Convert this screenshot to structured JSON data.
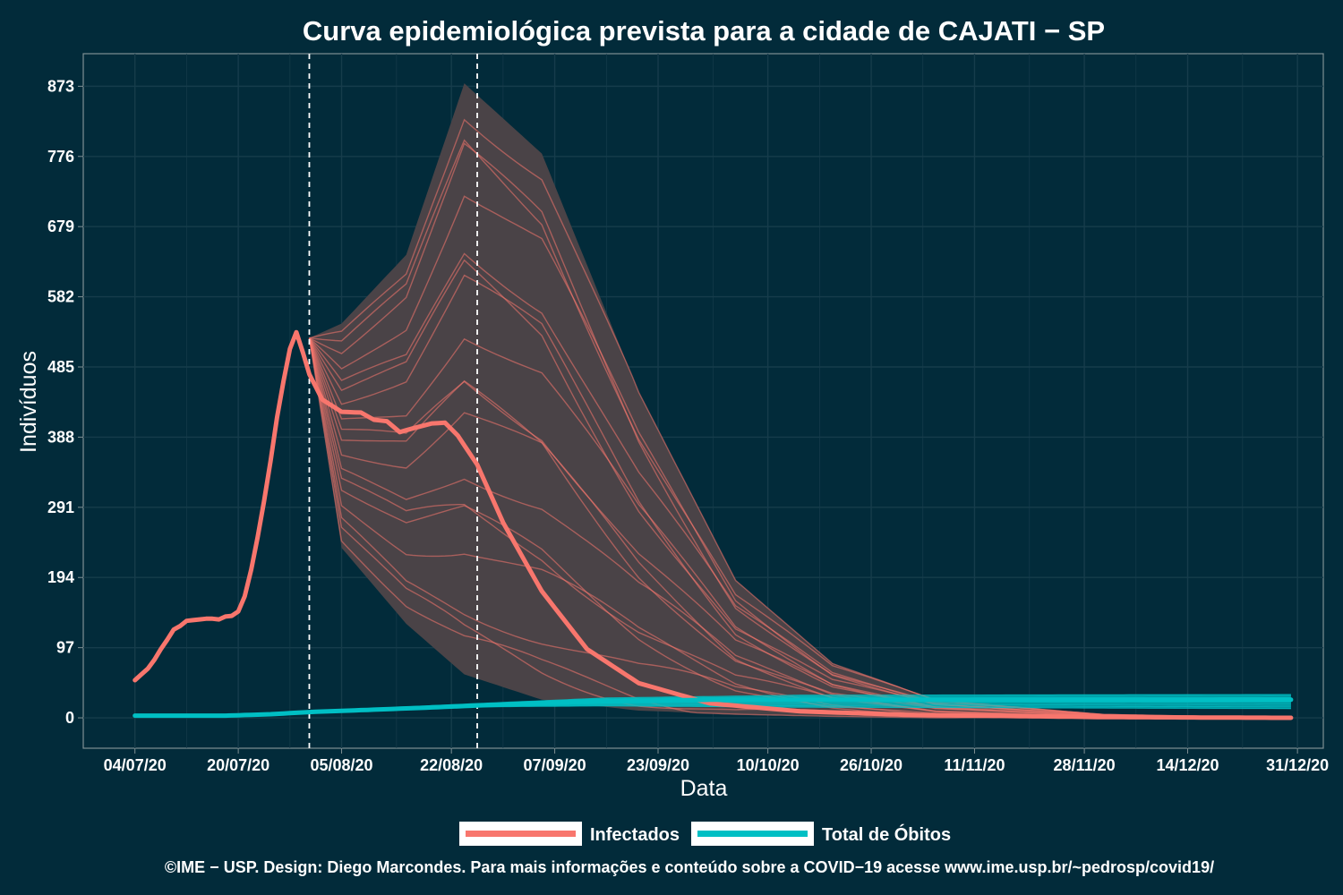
{
  "colors": {
    "background": "#022b3a",
    "infectados": "#f8766d",
    "obitos": "#00bfc4",
    "band": "#4a4347",
    "grid": "#163c4b",
    "vline": "#ffffff",
    "panel_border": "#7f8f93"
  },
  "chart_data": {
    "type": "line",
    "title": "Curva epidemiológica prevista para a cidade de CAJATI − SP",
    "xlabel": "Data",
    "ylabel": "Indivíduos",
    "x_ticks": [
      "04/07/20",
      "20/07/20",
      "05/08/20",
      "22/08/20",
      "07/09/20",
      "23/09/20",
      "10/10/20",
      "26/10/20",
      "11/11/20",
      "28/11/20",
      "14/12/20",
      "31/12/20"
    ],
    "y_ticks": [
      "0",
      "97",
      "194",
      "291",
      "388",
      "485",
      "582",
      "679",
      "776",
      "873"
    ],
    "xlim": [
      "2020-06-26",
      "2021-01-04"
    ],
    "ylim": [
      -42,
      918
    ],
    "grid": true,
    "legend_position": "bottom",
    "vlines": [
      "2020-07-31",
      "2020-08-26"
    ],
    "series": [
      {
        "name": "Infectados",
        "observed": [
          [
            "2020-07-04",
            52
          ],
          [
            "2020-07-05",
            60
          ],
          [
            "2020-07-06",
            68
          ],
          [
            "2020-07-07",
            80
          ],
          [
            "2020-07-08",
            95
          ],
          [
            "2020-07-09",
            108
          ],
          [
            "2020-07-10",
            122
          ],
          [
            "2020-07-11",
            127
          ],
          [
            "2020-07-12",
            134
          ],
          [
            "2020-07-13",
            135
          ],
          [
            "2020-07-14",
            136
          ],
          [
            "2020-07-15",
            137
          ],
          [
            "2020-07-16",
            137
          ],
          [
            "2020-07-17",
            136
          ],
          [
            "2020-07-18",
            140
          ],
          [
            "2020-07-19",
            141
          ],
          [
            "2020-07-20",
            147
          ],
          [
            "2020-07-21",
            168
          ],
          [
            "2020-07-22",
            205
          ],
          [
            "2020-07-23",
            250
          ],
          [
            "2020-07-24",
            300
          ],
          [
            "2020-07-25",
            355
          ],
          [
            "2020-07-26",
            415
          ],
          [
            "2020-07-27",
            465
          ],
          [
            "2020-07-28",
            510
          ],
          [
            "2020-07-29",
            533
          ],
          [
            "2020-07-30",
            505
          ],
          [
            "2020-07-31",
            475
          ]
        ],
        "forecast": [
          [
            "2020-07-31",
            475
          ],
          [
            "2020-08-02",
            440
          ],
          [
            "2020-08-05",
            423
          ],
          [
            "2020-08-08",
            422
          ],
          [
            "2020-08-10",
            412
          ],
          [
            "2020-08-12",
            410
          ],
          [
            "2020-08-14",
            395
          ],
          [
            "2020-08-16",
            400
          ],
          [
            "2020-08-19",
            407
          ],
          [
            "2020-08-21",
            408
          ],
          [
            "2020-08-23",
            390
          ],
          [
            "2020-08-26",
            350
          ],
          [
            "2020-08-30",
            270
          ],
          [
            "2020-09-05",
            175
          ],
          [
            "2020-09-12",
            95
          ],
          [
            "2020-09-20",
            48
          ],
          [
            "2020-10-01",
            20
          ],
          [
            "2020-10-15",
            9
          ],
          [
            "2020-11-01",
            4
          ],
          [
            "2020-12-01",
            1
          ],
          [
            "2020-12-30",
            0
          ]
        ],
        "band": [
          [
            "2020-07-31",
            525,
            525
          ],
          [
            "2020-08-05",
            545,
            235
          ],
          [
            "2020-08-15",
            640,
            130
          ],
          [
            "2020-08-24",
            877,
            60
          ],
          [
            "2020-09-05",
            780,
            25
          ],
          [
            "2020-09-20",
            450,
            10
          ],
          [
            "2020-10-05",
            190,
            5
          ],
          [
            "2020-10-20",
            75,
            2
          ],
          [
            "2020-11-05",
            25,
            0
          ],
          [
            "2020-12-01",
            5,
            0
          ],
          [
            "2020-12-30",
            0,
            0
          ]
        ]
      },
      {
        "name": "Total de Óbitos",
        "observed": [
          [
            "2020-07-04",
            3
          ],
          [
            "2020-07-18",
            3
          ],
          [
            "2020-07-25",
            5
          ],
          [
            "2020-07-31",
            8
          ]
        ],
        "forecast": [
          [
            "2020-07-31",
            8
          ],
          [
            "2020-08-15",
            13
          ],
          [
            "2020-08-26",
            17
          ],
          [
            "2020-09-10",
            22
          ],
          [
            "2020-10-01",
            25
          ],
          [
            "2020-11-01",
            25
          ],
          [
            "2020-12-30",
            25
          ]
        ],
        "band": [
          [
            "2020-07-31",
            9,
            7
          ],
          [
            "2020-08-26",
            20,
            15
          ],
          [
            "2020-09-15",
            28,
            16
          ],
          [
            "2020-10-15",
            32,
            14
          ],
          [
            "2020-12-30",
            33,
            12
          ]
        ]
      }
    ]
  },
  "legend": {
    "items": [
      {
        "label": "Infectados",
        "color": "#f8766d"
      },
      {
        "label": "Total de Óbitos",
        "color": "#00bfc4"
      }
    ]
  },
  "caption": "©IME − USP. Design: Diego Marcondes. Para mais informações e conteúdo sobre a COVID−19 acesse www.ime.usp.br/~pedrosp/covid19/"
}
